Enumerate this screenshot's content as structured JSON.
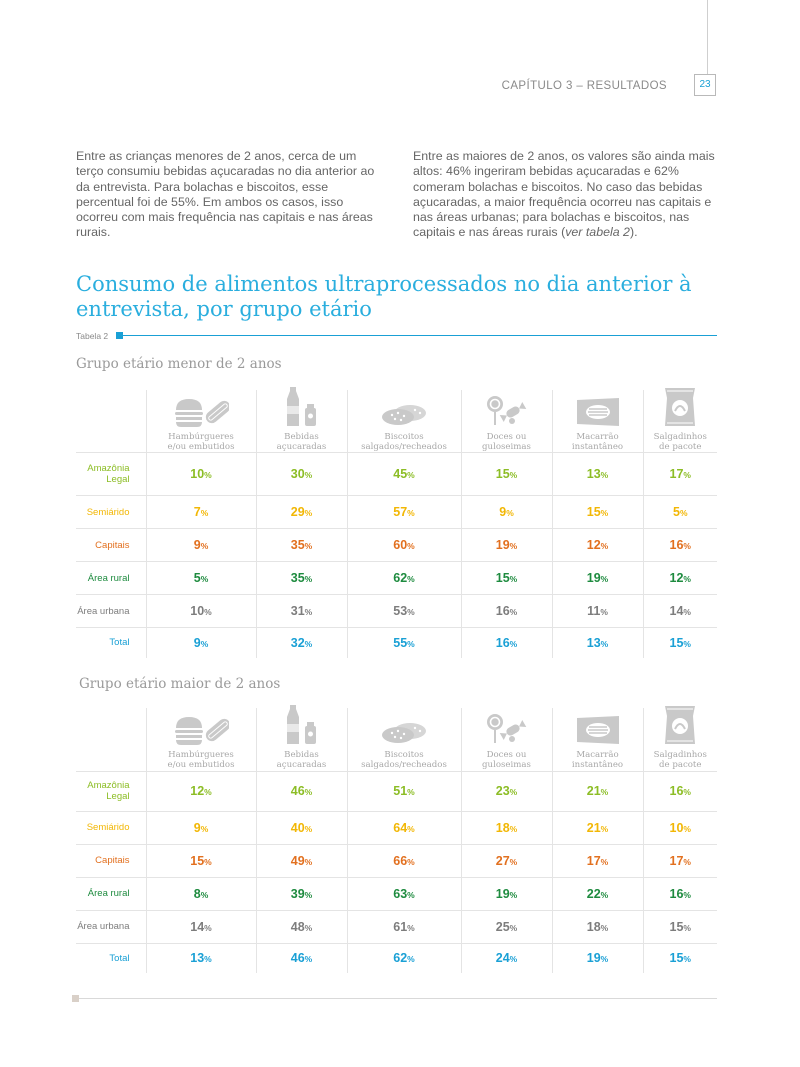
{
  "header": {
    "chapter": "CAPÍTULO 3 – RESULTADOS",
    "page_number": "23"
  },
  "intro": {
    "col1": "Entre as crianças menores de 2 anos, cerca de um terço consumiu bebidas açucaradas no dia anterior ao da entrevista. Para bolachas e biscoitos, esse percentual foi de 55%. Em ambos os casos, isso ocorreu com mais frequência nas capitais e nas áreas rurais.",
    "col2_main": "Entre as maiores de 2 anos, os valores são ainda mais altos: 46% ingeriram bebidas açucaradas e 62% comeram bolachas e biscoitos. No caso das bebidas açucaradas, a maior frequência ocorreu nas capitais e nas áreas urbanas; para bolachas e biscoitos, nas capitais e nas áreas rurais (",
    "col2_ref": "ver tabela 2",
    "col2_end": ")."
  },
  "title": "Consumo de alimentos ultraprocessados no dia anterior à entrevista, por grupo etário",
  "table_label": "Tabela 2",
  "columns": [
    {
      "icon": "hamburger-hotdog-icon",
      "line1": "Hambúrgueres",
      "line2": "e/ou embutidos"
    },
    {
      "icon": "soda-bottle-icon",
      "line1": "Bebidas",
      "line2": "açucaradas"
    },
    {
      "icon": "cookies-icon",
      "line1": "Biscoitos",
      "line2": "salgados/recheados"
    },
    {
      "icon": "candy-lollipop-icon",
      "line1": "Doces ou",
      "line2": "guloseimas"
    },
    {
      "icon": "instant-noodles-icon",
      "line1": "Macarrão",
      "line2": "instantâneo"
    },
    {
      "icon": "chips-bag-icon",
      "line1": "Salgadinhos",
      "line2": "de pacote"
    }
  ],
  "colors": {
    "amazonia": "#8cbd25",
    "semiarido": "#f2b705",
    "capitais": "#e2701f",
    "rural": "#1e8b3f",
    "urbana": "#7d7d7d",
    "total": "#1aa0d5"
  },
  "groups": [
    {
      "title": "Grupo etário menor de 2 anos",
      "rows": [
        {
          "label": "Amazônia Legal",
          "values": [
            "10",
            "30",
            "45",
            "15",
            "13",
            "17"
          ]
        },
        {
          "label": "Semiárido",
          "values": [
            "7",
            "29",
            "57",
            "9",
            "15",
            "5"
          ]
        },
        {
          "label": "Capitais",
          "values": [
            "9",
            "35",
            "60",
            "19",
            "12",
            "16"
          ]
        },
        {
          "label": "Área rural",
          "values": [
            "5",
            "35",
            "62",
            "15",
            "19",
            "12"
          ]
        },
        {
          "label": "Área urbana",
          "values": [
            "10",
            "31",
            "53",
            "16",
            "11",
            "14"
          ]
        },
        {
          "label": "Total",
          "values": [
            "9",
            "32",
            "55",
            "16",
            "13",
            "15"
          ]
        }
      ]
    },
    {
      "title": "Grupo etário maior de 2 anos",
      "rows": [
        {
          "label": "Amazônia Legal",
          "values": [
            "12",
            "46",
            "51",
            "23",
            "21",
            "16"
          ]
        },
        {
          "label": "Semiárido",
          "values": [
            "9",
            "40",
            "64",
            "18",
            "21",
            "10"
          ]
        },
        {
          "label": "Capitais",
          "values": [
            "15",
            "49",
            "66",
            "27",
            "17",
            "17"
          ]
        },
        {
          "label": "Área rural",
          "values": [
            "8",
            "39",
            "63",
            "19",
            "22",
            "16"
          ]
        },
        {
          "label": "Área urbana",
          "values": [
            "14",
            "48",
            "61",
            "25",
            "18",
            "15"
          ]
        },
        {
          "label": "Total",
          "values": [
            "13",
            "46",
            "62",
            "24",
            "19",
            "15"
          ]
        }
      ]
    }
  ],
  "percent_sign": "%"
}
